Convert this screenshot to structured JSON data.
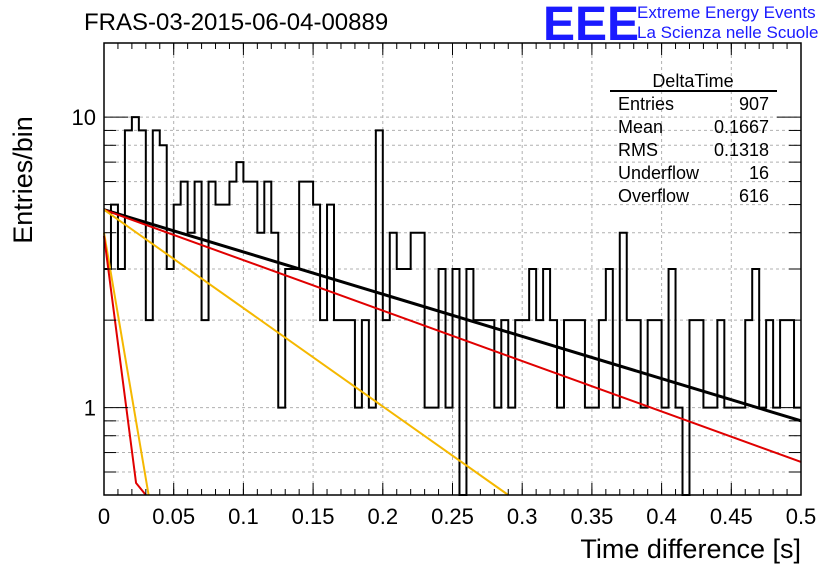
{
  "chart_data": {
    "type": "line",
    "title": "FRAS-03-2015-06-04-00889",
    "xlabel": "Time difference [s]",
    "ylabel": "Entries/bin",
    "xlim": [
      0,
      0.5
    ],
    "ylim": [
      0.5,
      18
    ],
    "y_scale": "log",
    "grid": true,
    "x_ticks": [
      "0",
      "0.05",
      "0.1",
      "0.15",
      "0.2",
      "0.25",
      "0.3",
      "0.35",
      "0.4",
      "0.45",
      "0.5"
    ],
    "y_ticks": [
      "1",
      "10"
    ],
    "histogram": {
      "bin_width": 0.005,
      "counts": [
        3,
        5,
        3,
        9,
        10,
        9,
        2,
        9,
        8,
        3,
        5,
        6,
        4,
        6,
        2,
        6,
        5,
        5,
        6,
        7,
        6,
        6,
        4,
        6,
        4,
        1,
        3,
        3,
        6,
        6,
        5,
        2,
        5,
        2,
        2,
        2,
        1,
        2,
        1,
        9,
        2,
        4,
        3,
        3,
        4,
        4,
        1,
        1,
        3,
        1,
        3,
        0,
        3,
        2,
        2,
        2,
        1,
        2,
        1,
        2,
        2,
        3,
        2,
        3,
        2,
        1,
        2,
        2,
        2,
        1,
        1,
        2,
        3,
        1,
        4,
        2,
        2,
        1,
        2,
        2,
        1,
        3,
        1,
        0,
        2,
        2,
        1,
        1,
        2,
        1,
        1,
        1,
        2,
        3,
        1,
        2,
        1,
        2,
        2,
        1
      ]
    },
    "series": [
      {
        "color": "#000000",
        "points": [
          [
            0,
            4.8
          ],
          [
            0.5,
            0.9
          ]
        ]
      },
      {
        "color": "#e00000",
        "points": [
          [
            0,
            4.8
          ],
          [
            0.5,
            0.65
          ]
        ]
      },
      {
        "color": "#f5b800",
        "points": [
          [
            0,
            4.8
          ],
          [
            0.29,
            0.5
          ]
        ]
      },
      {
        "color": "#f5b800",
        "points": [
          [
            0,
            4.0
          ],
          [
            0.032,
            0.5
          ]
        ]
      },
      {
        "color": "#e00000",
        "points": [
          [
            0,
            3.9
          ],
          [
            0.023,
            0.55
          ],
          [
            0.03,
            0.5
          ]
        ]
      }
    ],
    "stats_box": {
      "title": "DeltaTime",
      "rows": [
        {
          "label": "Entries",
          "value": "907"
        },
        {
          "label": "Mean",
          "value": "0.1667"
        },
        {
          "label": "RMS",
          "value": "0.1318"
        },
        {
          "label": "Underflow",
          "value": "16"
        },
        {
          "label": "Overflow",
          "value": "616"
        }
      ]
    }
  },
  "logo": {
    "text": "EEE",
    "line1": "Extreme Energy Events",
    "line2": "La Scienza nelle Scuole",
    "color": "#1a1aff"
  }
}
